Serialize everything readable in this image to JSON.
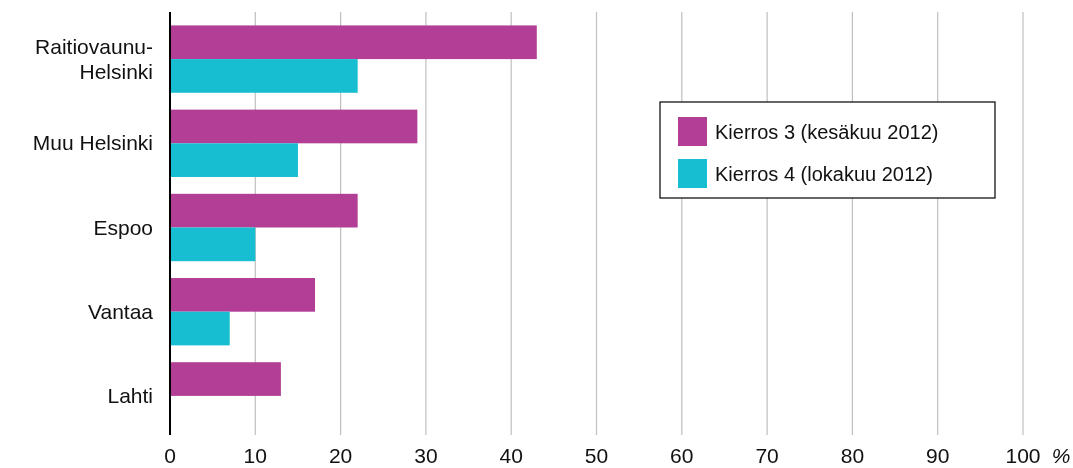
{
  "chart_data": {
    "type": "bar",
    "orientation": "horizontal",
    "categories": [
      "Raitiovaunu-Helsinki",
      "Muu Helsinki",
      "Espoo",
      "Vantaa",
      "Lahti"
    ],
    "series": [
      {
        "name": "Kierros 3 (kesäkuu 2012)",
        "color": "#b33e96",
        "values": [
          43,
          29,
          22,
          17,
          13
        ]
      },
      {
        "name": "Kierros 4 (lokakuu 2012)",
        "color": "#17bdd0",
        "values": [
          22,
          15,
          10,
          7,
          null
        ]
      }
    ],
    "xlim": [
      0,
      100
    ],
    "xticks": [
      0,
      10,
      20,
      30,
      40,
      50,
      60,
      70,
      80,
      90,
      100
    ],
    "xlabel": "%",
    "grid": "x",
    "legend": "top right"
  }
}
